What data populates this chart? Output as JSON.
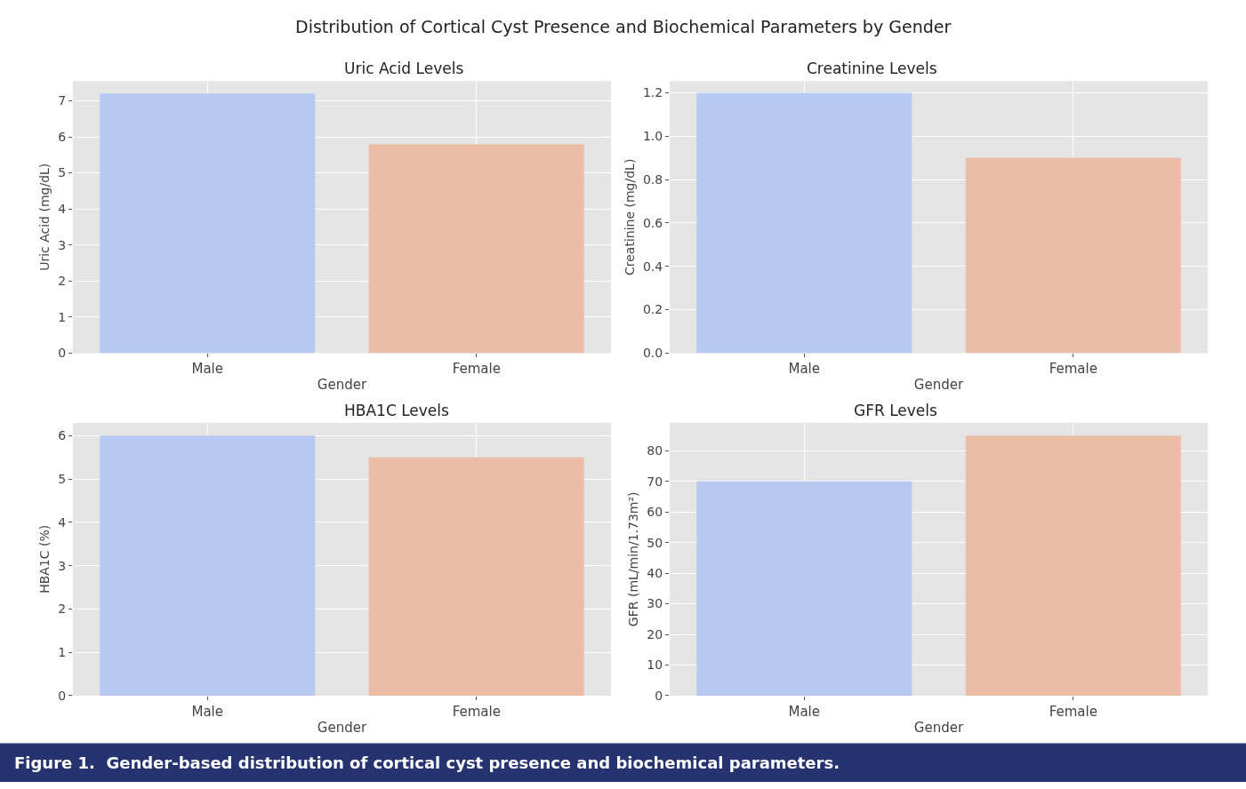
{
  "chart_data": [
    {
      "type": "other",
      "title": "Distribution of Cortical Cyst Presence and Biochemical Parameters by Gender",
      "annotations": [
        "Figure 1.  Gender-based distribution of cortical cyst presence and biochemical parameters."
      ]
    },
    {
      "type": "bar",
      "title": "Uric Acid Levels",
      "xlabel": "Gender",
      "ylabel": "Uric Acid (mg/dL)",
      "categories": [
        "Male",
        "Female"
      ],
      "values": [
        7.2,
        5.8
      ],
      "colors": [
        "#b5c9f1",
        "#ebbca6"
      ],
      "ylim": [
        0,
        7.55
      ],
      "yticks": [
        0,
        1,
        2,
        3,
        4,
        5,
        6,
        7
      ],
      "grid": true
    },
    {
      "type": "bar",
      "title": "Creatinine Levels",
      "xlabel": "Gender",
      "ylabel": "Creatinine (mg/dL)",
      "categories": [
        "Male",
        "Female"
      ],
      "values": [
        1.2,
        0.9
      ],
      "colors": [
        "#b5c9f1",
        "#ebbca6"
      ],
      "ylim": [
        0,
        1.255
      ],
      "yticks": [
        {
          "value": 0,
          "label": "0.0"
        },
        0.2,
        0.4,
        0.6,
        0.8,
        {
          "value": 1,
          "label": "1.0"
        },
        1.2
      ],
      "grid": true
    },
    {
      "type": "bar",
      "title": "HBA1C Levels",
      "xlabel": "Gender",
      "ylabel": "HBA1C (%)",
      "categories": [
        "Male",
        "Female"
      ],
      "values": [
        6.0,
        5.5
      ],
      "colors": [
        "#b5c9f1",
        "#ebbca6"
      ],
      "ylim": [
        0,
        6.3
      ],
      "yticks": [
        0,
        1,
        2,
        3,
        4,
        5,
        6
      ],
      "grid": true
    },
    {
      "type": "bar",
      "title": "GFR Levels",
      "xlabel": "Gender",
      "ylabel": "GFR (mL/min/1.73m²)",
      "categories": [
        "Male",
        "Female"
      ],
      "values": [
        70,
        85
      ],
      "colors": [
        "#b5c9f1",
        "#ebbca6"
      ],
      "ylim": [
        0,
        89.2
      ],
      "yticks": [
        0,
        10,
        20,
        30,
        40,
        50,
        60,
        70,
        80
      ],
      "grid": true
    }
  ]
}
